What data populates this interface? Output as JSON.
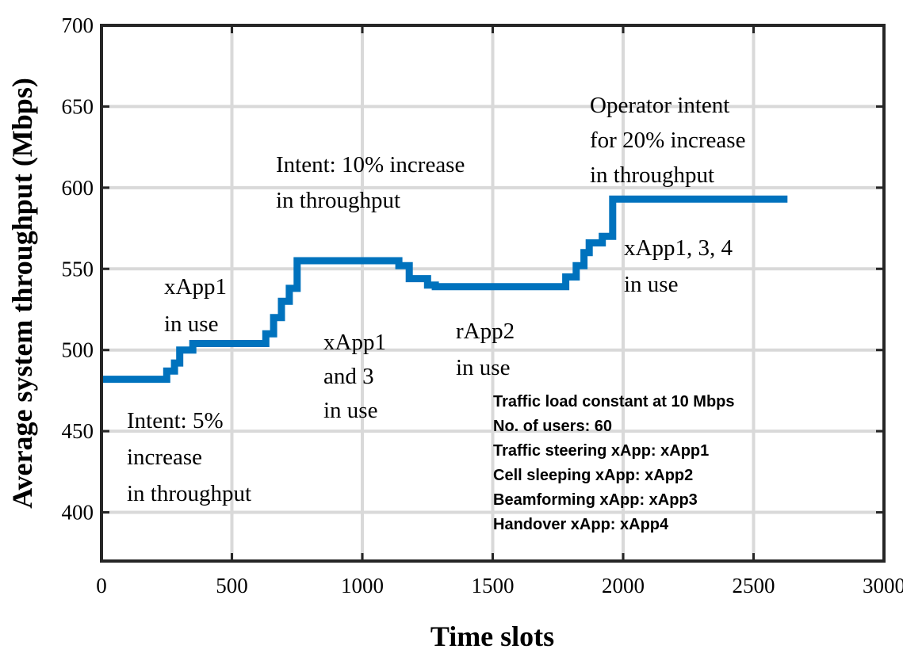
{
  "chart_data": {
    "type": "line",
    "title": "",
    "xlabel": "Time slots",
    "ylabel": "Average system throughput (Mbps)",
    "xlim": [
      0,
      3000
    ],
    "ylim": [
      370,
      700
    ],
    "xticks": [
      0,
      500,
      1000,
      1500,
      2000,
      2500,
      3000
    ],
    "yticks": [
      400,
      450,
      500,
      550,
      600,
      650,
      700
    ],
    "grid": true,
    "line_color": "#0072BD",
    "series": [
      {
        "name": "Average system throughput",
        "x": [
          0,
          250,
          250,
          280,
          280,
          300,
          300,
          350,
          350,
          630,
          630,
          660,
          660,
          690,
          690,
          720,
          720,
          750,
          750,
          1140,
          1140,
          1180,
          1180,
          1250,
          1250,
          1280,
          1280,
          1780,
          1780,
          1820,
          1820,
          1850,
          1850,
          1870,
          1870,
          1920,
          1920,
          1960,
          1960,
          2630
        ],
        "y": [
          482,
          482,
          487,
          487,
          492,
          492,
          500,
          500,
          504,
          504,
          510,
          510,
          520,
          520,
          530,
          530,
          538,
          538,
          555,
          555,
          552,
          552,
          544,
          544,
          540,
          540,
          539,
          539,
          545,
          545,
          552,
          552,
          560,
          560,
          566,
          566,
          570,
          570,
          593,
          593
        ]
      }
    ],
    "annotations": [
      {
        "lines": [
          "xApp1",
          "in use"
        ]
      },
      {
        "lines": [
          "Intent: 5%",
          "increase",
          "in throughput"
        ]
      },
      {
        "lines": [
          "Intent: 10% increase",
          "in throughput"
        ]
      },
      {
        "lines": [
          "xApp1",
          "and 3",
          "in use"
        ]
      },
      {
        "lines": [
          "rApp2",
          "in use"
        ]
      },
      {
        "lines": [
          "Operator intent",
          "for 20% increase",
          "in throughput"
        ]
      },
      {
        "lines": [
          "xApp1, 3, 4",
          "in use"
        ]
      }
    ],
    "info_box": [
      "Traffic load constant at 10 Mbps",
      "No. of users: 60",
      "Traffic steering xApp: xApp1",
      "Cell sleeping xApp: xApp2",
      "Beamforming xApp: xApp3",
      "Handover xApp: xApp4"
    ]
  }
}
